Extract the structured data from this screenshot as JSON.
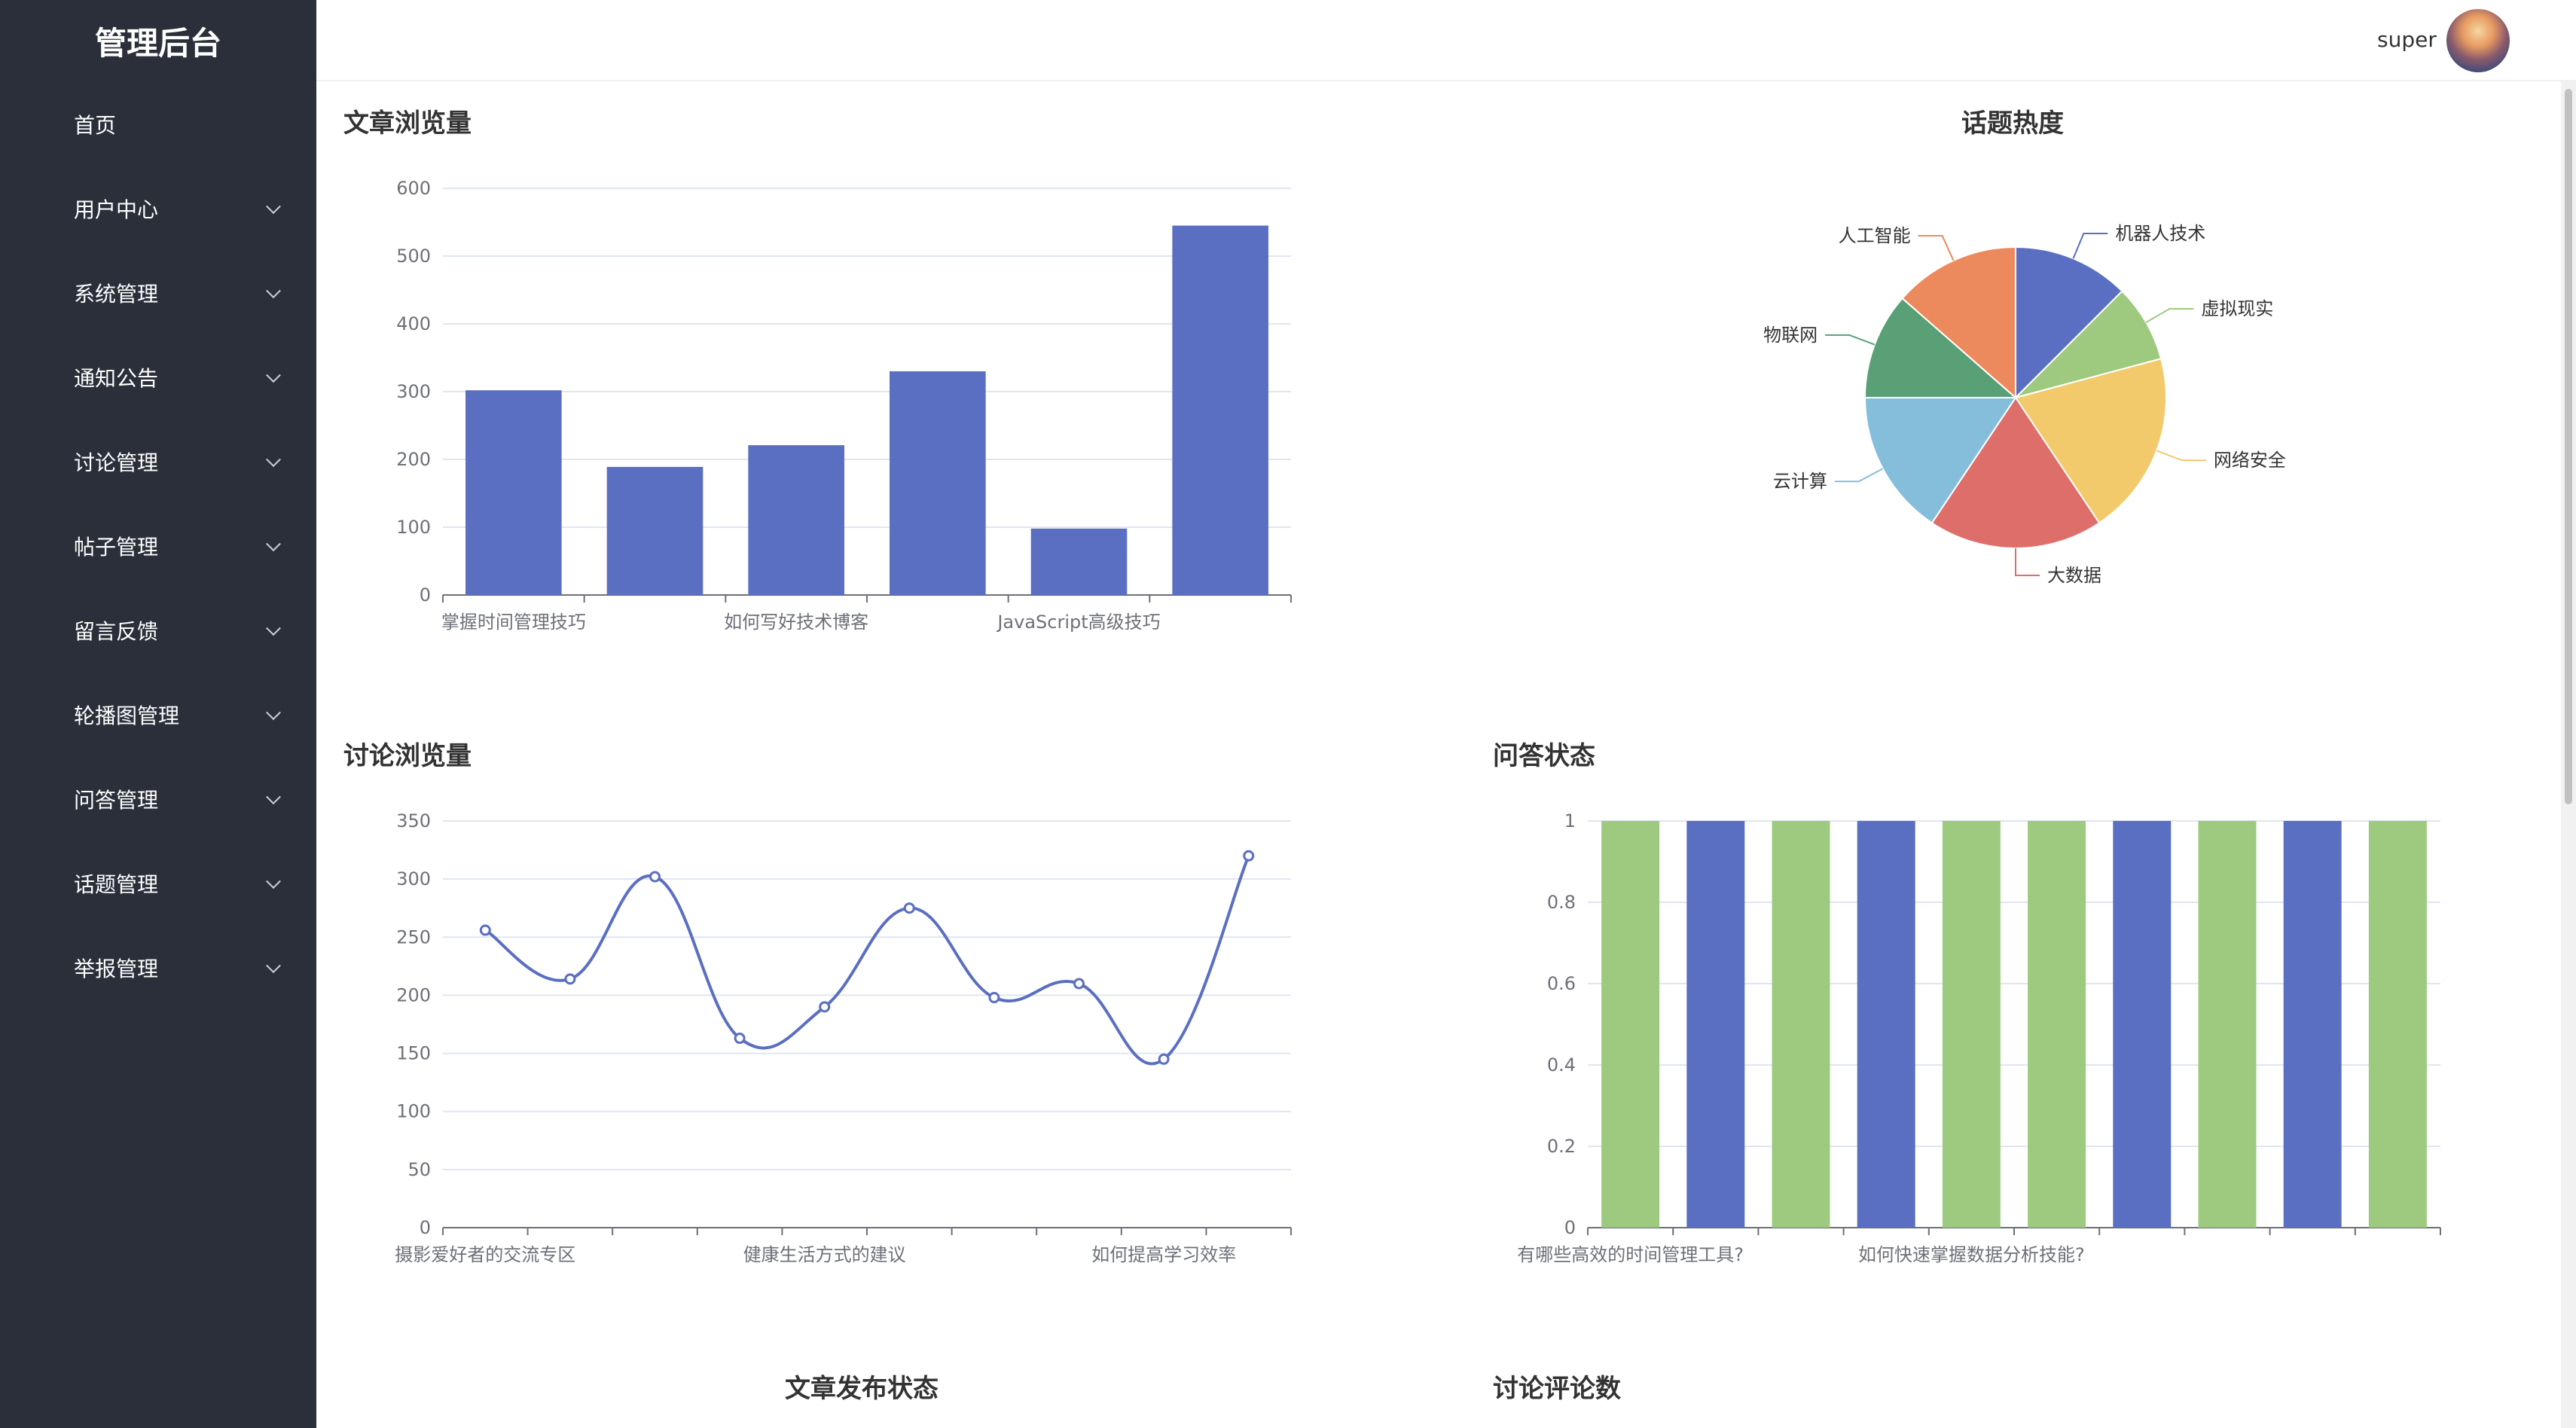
{
  "app": {
    "title": "管理后台"
  },
  "sidebar": {
    "items": [
      {
        "label": "首页",
        "expandable": false
      },
      {
        "label": "用户中心",
        "expandable": true
      },
      {
        "label": "系统管理",
        "expandable": true
      },
      {
        "label": "通知公告",
        "expandable": true
      },
      {
        "label": "讨论管理",
        "expandable": true
      },
      {
        "label": "帖子管理",
        "expandable": true
      },
      {
        "label": "留言反馈",
        "expandable": true
      },
      {
        "label": "轮播图管理",
        "expandable": true
      },
      {
        "label": "问答管理",
        "expandable": true
      },
      {
        "label": "话题管理",
        "expandable": true
      },
      {
        "label": "举报管理",
        "expandable": true
      }
    ]
  },
  "header": {
    "username": "super"
  },
  "panels": {
    "article_views": "文章浏览量",
    "topic_heat": "话题热度",
    "discussion_views": "讨论浏览量",
    "qa_status": "问答状态",
    "article_status": "文章发布状态",
    "discussion_comments": "讨论评论数"
  },
  "colors": {
    "sidebar_bg": "#2b2f3a",
    "bar_blue": "#5b6fc2",
    "green": "#9eca7f",
    "yellow": "#f2ca6b",
    "red": "#de6e6a",
    "lightblue": "#85bedb",
    "darkgreen": "#59a076",
    "orange": "#ec8a5d"
  },
  "chart_data": [
    {
      "id": "article_views",
      "type": "bar",
      "categories": [
        "掌握时间管理技巧",
        "",
        "如何写好技术博客",
        "",
        "JavaScript高级技巧",
        ""
      ],
      "values": [
        302,
        189,
        221,
        330,
        98,
        545
      ],
      "ylim": [
        0,
        600
      ],
      "yticks": [
        0,
        100,
        200,
        300,
        400,
        500,
        600
      ],
      "color": "#5b6fc2"
    },
    {
      "id": "topic_heat",
      "type": "pie",
      "slices": [
        {
          "label": "机器人技术",
          "value": 12,
          "color": "#5b6fc2"
        },
        {
          "label": "虚拟现实",
          "value": 8,
          "color": "#9eca7f"
        },
        {
          "label": "网络安全",
          "value": 19,
          "color": "#f2ca6b"
        },
        {
          "label": "大数据",
          "value": 18,
          "color": "#de6e6a"
        },
        {
          "label": "云计算",
          "value": 15,
          "color": "#85bedb"
        },
        {
          "label": "物联网",
          "value": 11,
          "color": "#59a076"
        },
        {
          "label": "人工智能",
          "value": 13,
          "color": "#ec8a5d"
        }
      ]
    },
    {
      "id": "discussion_views",
      "type": "line",
      "smooth": true,
      "categories": [
        "摄影爱好者的交流专区",
        "",
        "",
        "",
        "健康生活方式的建议",
        "",
        "",
        "",
        "如何提高学习效率",
        ""
      ],
      "values": [
        256,
        214,
        302,
        163,
        190,
        275,
        198,
        210,
        145,
        320
      ],
      "ylim": [
        0,
        350
      ],
      "yticks": [
        0,
        50,
        100,
        150,
        200,
        250,
        300,
        350
      ],
      "color": "#5b6fc2"
    },
    {
      "id": "qa_status",
      "type": "bar",
      "categories": [
        "有哪些高效的时间管理工具?",
        "",
        "",
        "",
        "如何快速掌握数据分析技能?",
        "",
        "",
        "",
        "",
        ""
      ],
      "values": [
        1,
        1,
        1,
        1,
        1,
        1,
        1,
        1,
        1,
        1
      ],
      "bar_colors": [
        "#9eca7f",
        "#5b6fc2",
        "#9eca7f",
        "#5b6fc2",
        "#9eca7f",
        "#9eca7f",
        "#5b6fc2",
        "#9eca7f",
        "#5b6fc2",
        "#9eca7f"
      ],
      "ylim": [
        0,
        1
      ],
      "yticks": [
        "0",
        "0.2",
        "0.4",
        "0.6",
        "0.8",
        "1"
      ]
    }
  ]
}
